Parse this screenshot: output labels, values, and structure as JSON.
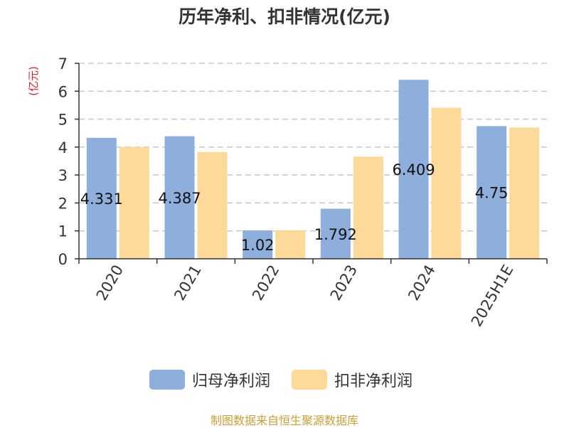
{
  "chart_data": {
    "type": "bar",
    "title": "历年净利、扣非情况(亿元)",
    "ylabel": "(亿元)",
    "xlabel": "",
    "categories": [
      "2020",
      "2021",
      "2022",
      "2023",
      "2024",
      "2025H1E"
    ],
    "yticks": [
      "0",
      "1",
      "2",
      "3",
      "4",
      "5",
      "6",
      "7"
    ],
    "ylim": [
      0,
      7
    ],
    "grid": true,
    "legend": "bottom",
    "series": [
      {
        "name": "归母净利润",
        "color": "#8eaedb",
        "values": [
          4.331,
          4.387,
          1.02,
          1.792,
          6.409,
          4.75
        ],
        "labels": [
          "4.331",
          "4.387",
          "1.02",
          "1.792",
          "6.409",
          "4.75"
        ]
      },
      {
        "name": "扣非净利润",
        "color": "#fdd99a",
        "values": [
          4.0,
          3.82,
          1.02,
          3.66,
          5.41,
          4.7
        ]
      }
    ]
  },
  "source": "制图数据来自恒生聚源数据库"
}
